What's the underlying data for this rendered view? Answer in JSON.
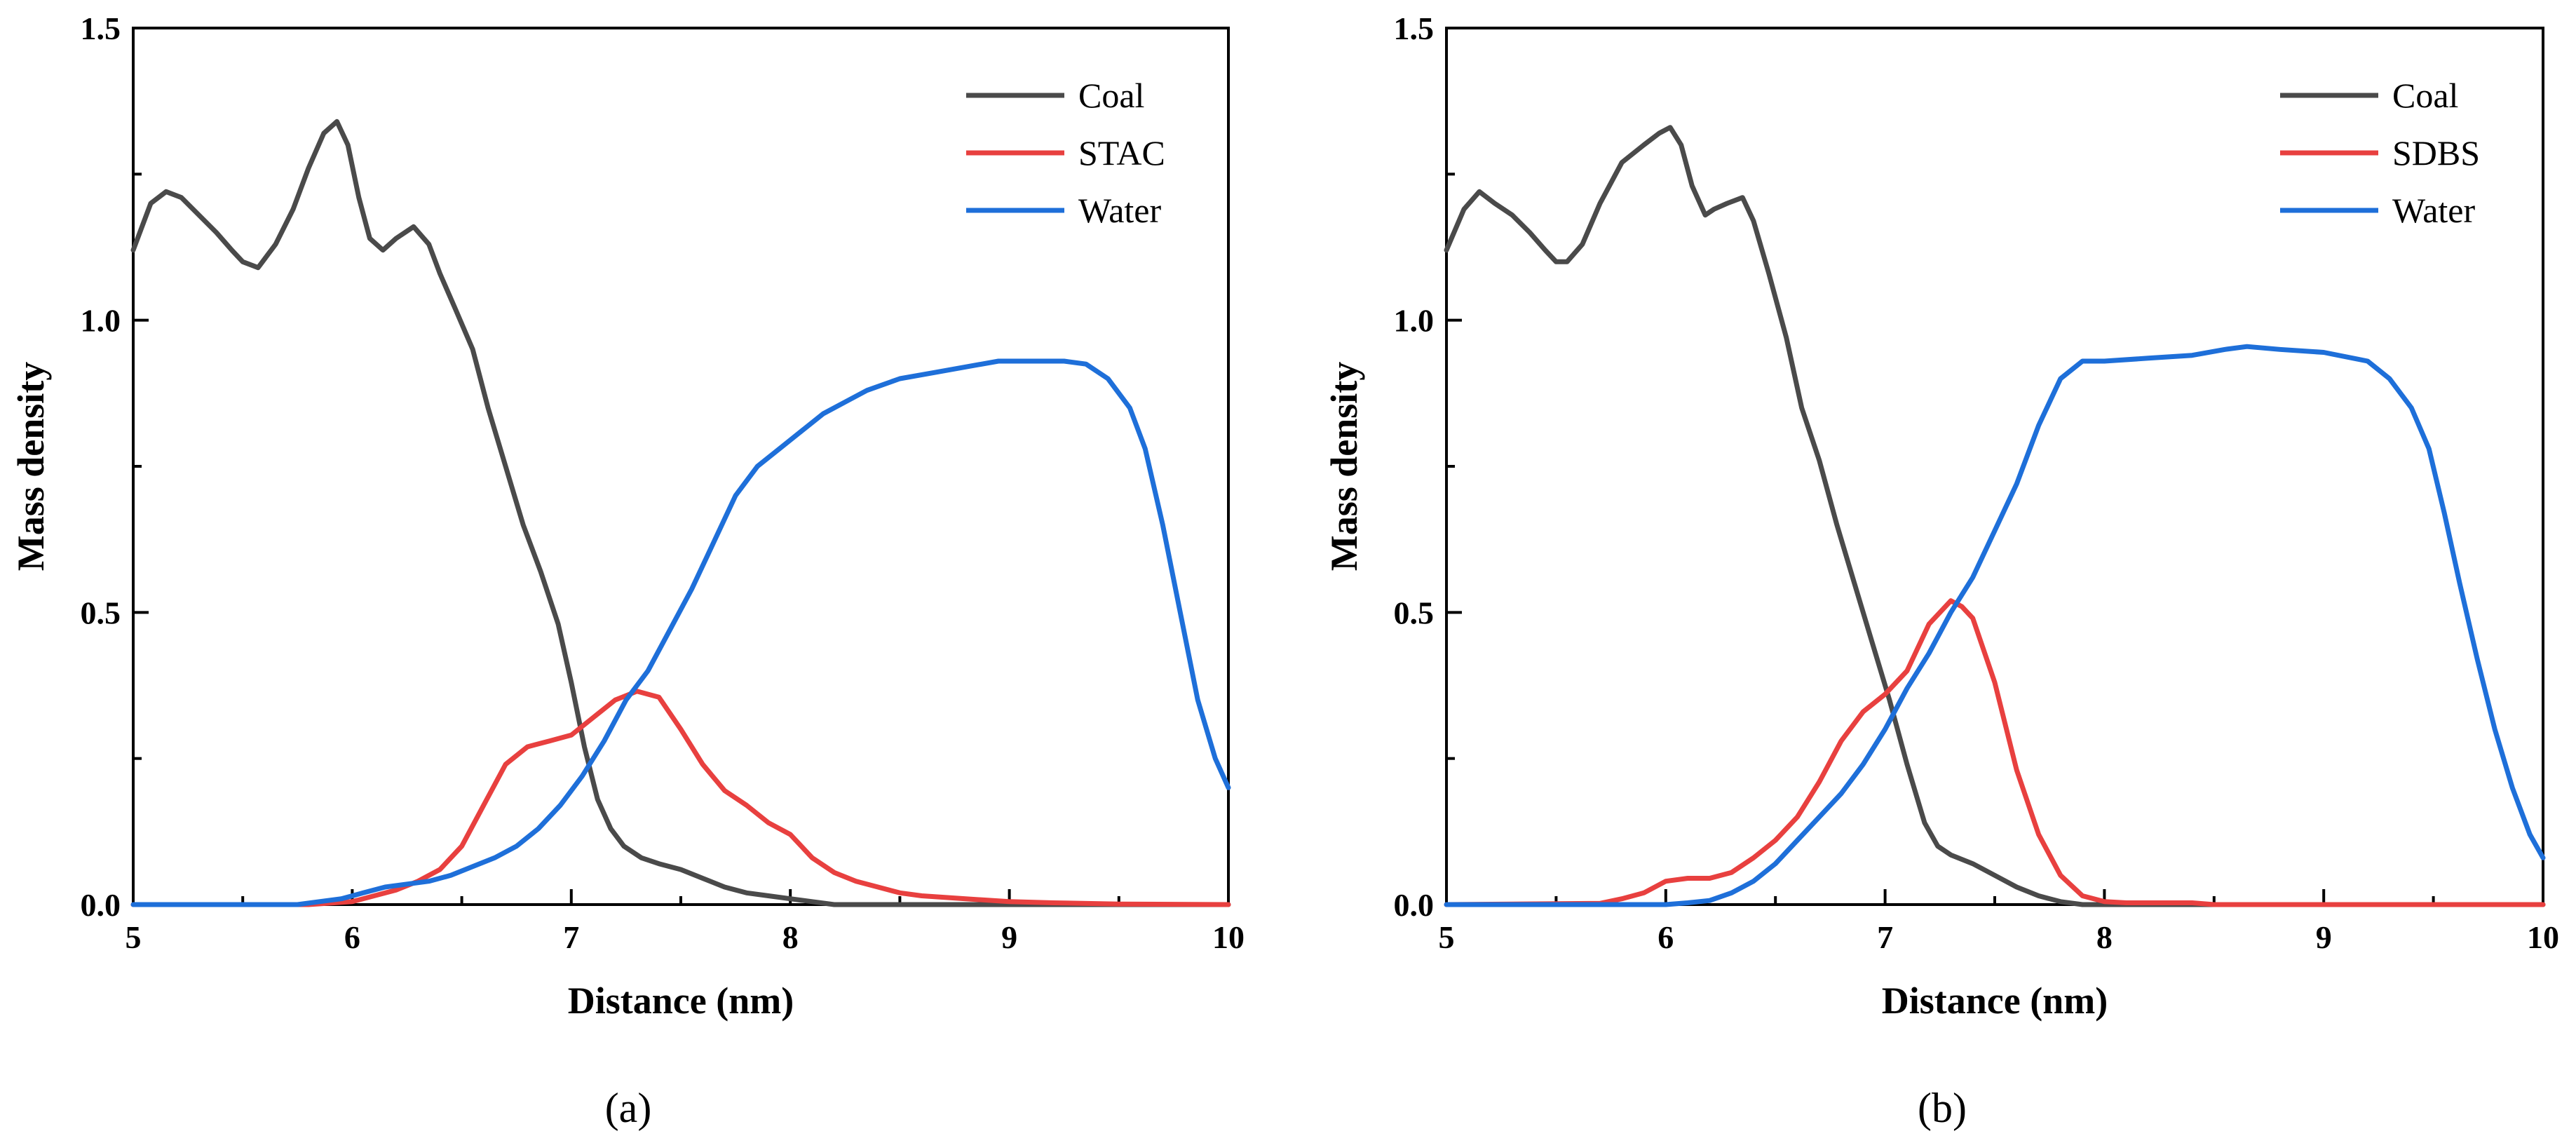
{
  "chart_data": [
    {
      "type": "line",
      "panel_label": "(a)",
      "xlabel": "Distance (nm)",
      "ylabel": "Mass density",
      "xlim": [
        5,
        10
      ],
      "ylim": [
        0,
        1.5
      ],
      "xticks": [
        5,
        6,
        7,
        8,
        9,
        10
      ],
      "xtick_labels": [
        "5",
        "6",
        "7",
        "8",
        "9",
        "10"
      ],
      "yticks": [
        0,
        0.5,
        1.0,
        1.5
      ],
      "ytick_labels": [
        "0.0",
        "0.5",
        "1.0",
        "1.5"
      ],
      "legend_position": "top-right",
      "series": [
        {
          "name": "Coal",
          "color": "#4a4a4a",
          "x": [
            5.0,
            5.08,
            5.15,
            5.22,
            5.3,
            5.38,
            5.45,
            5.5,
            5.57,
            5.65,
            5.73,
            5.8,
            5.87,
            5.93,
            5.98,
            6.03,
            6.08,
            6.14,
            6.2,
            6.28,
            6.35,
            6.4,
            6.47,
            6.55,
            6.62,
            6.7,
            6.78,
            6.86,
            6.94,
            7.0,
            7.06,
            7.12,
            7.18,
            7.24,
            7.32,
            7.4,
            7.5,
            7.6,
            7.7,
            7.8,
            7.9,
            8.0,
            8.1,
            8.2,
            8.5,
            9.0,
            9.5,
            10.0
          ],
          "values": [
            1.12,
            1.2,
            1.22,
            1.21,
            1.18,
            1.15,
            1.12,
            1.1,
            1.09,
            1.13,
            1.19,
            1.26,
            1.32,
            1.34,
            1.3,
            1.21,
            1.14,
            1.12,
            1.14,
            1.16,
            1.13,
            1.08,
            1.02,
            0.95,
            0.85,
            0.75,
            0.65,
            0.57,
            0.48,
            0.38,
            0.27,
            0.18,
            0.13,
            0.1,
            0.08,
            0.07,
            0.06,
            0.045,
            0.03,
            0.02,
            0.015,
            0.01,
            0.005,
            0.0,
            0.0,
            0.0,
            0.0,
            0.0
          ]
        },
        {
          "name": "STAC",
          "color": "#e8403f",
          "x": [
            5.0,
            5.8,
            6.0,
            6.1,
            6.2,
            6.3,
            6.4,
            6.5,
            6.6,
            6.7,
            6.8,
            6.9,
            7.0,
            7.1,
            7.2,
            7.3,
            7.4,
            7.5,
            7.6,
            7.7,
            7.8,
            7.9,
            8.0,
            8.1,
            8.2,
            8.3,
            8.4,
            8.5,
            8.6,
            8.8,
            9.0,
            9.2,
            9.5,
            10.0
          ],
          "values": [
            0.0,
            0.0,
            0.005,
            0.015,
            0.025,
            0.04,
            0.06,
            0.1,
            0.17,
            0.24,
            0.27,
            0.28,
            0.29,
            0.32,
            0.35,
            0.365,
            0.355,
            0.3,
            0.24,
            0.195,
            0.17,
            0.14,
            0.12,
            0.08,
            0.055,
            0.04,
            0.03,
            0.02,
            0.015,
            0.01,
            0.005,
            0.003,
            0.001,
            0.0
          ]
        },
        {
          "name": "Water",
          "color": "#1e6fd9",
          "x": [
            5.0,
            5.75,
            5.85,
            5.95,
            6.05,
            6.15,
            6.25,
            6.35,
            6.45,
            6.55,
            6.65,
            6.75,
            6.85,
            6.95,
            7.05,
            7.15,
            7.25,
            7.35,
            7.45,
            7.55,
            7.65,
            7.75,
            7.85,
            7.95,
            8.05,
            8.15,
            8.25,
            8.35,
            8.5,
            8.65,
            8.8,
            8.95,
            9.1,
            9.25,
            9.35,
            9.45,
            9.55,
            9.62,
            9.7,
            9.78,
            9.86,
            9.94,
            10.0
          ],
          "values": [
            0.0,
            0.0,
            0.005,
            0.01,
            0.02,
            0.03,
            0.035,
            0.04,
            0.05,
            0.065,
            0.08,
            0.1,
            0.13,
            0.17,
            0.22,
            0.28,
            0.35,
            0.4,
            0.47,
            0.54,
            0.62,
            0.7,
            0.75,
            0.78,
            0.81,
            0.84,
            0.86,
            0.88,
            0.9,
            0.91,
            0.92,
            0.93,
            0.93,
            0.93,
            0.925,
            0.9,
            0.85,
            0.78,
            0.65,
            0.5,
            0.35,
            0.25,
            0.2
          ]
        }
      ]
    },
    {
      "type": "line",
      "panel_label": "(b)",
      "xlabel": "Distance (nm)",
      "ylabel": "Mass density",
      "xlim": [
        5,
        10
      ],
      "ylim": [
        0,
        1.5
      ],
      "xticks": [
        5,
        6,
        7,
        8,
        9,
        10
      ],
      "xtick_labels": [
        "5",
        "6",
        "7",
        "8",
        "9",
        "10"
      ],
      "yticks": [
        0,
        0.5,
        1.0,
        1.5
      ],
      "ytick_labels": [
        "0.0",
        "0.5",
        "1.0",
        "1.5"
      ],
      "legend_position": "top-right",
      "series": [
        {
          "name": "Coal",
          "color": "#4a4a4a",
          "x": [
            5.0,
            5.08,
            5.15,
            5.22,
            5.3,
            5.38,
            5.45,
            5.5,
            5.55,
            5.62,
            5.7,
            5.8,
            5.9,
            5.97,
            6.02,
            6.07,
            6.12,
            6.18,
            6.22,
            6.28,
            6.35,
            6.4,
            6.47,
            6.55,
            6.62,
            6.7,
            6.78,
            6.86,
            6.94,
            7.02,
            7.1,
            7.18,
            7.24,
            7.3,
            7.4,
            7.5,
            7.6,
            7.7,
            7.8,
            7.9,
            8.0,
            9.0,
            10.0
          ],
          "values": [
            1.12,
            1.19,
            1.22,
            1.2,
            1.18,
            1.15,
            1.12,
            1.1,
            1.1,
            1.13,
            1.2,
            1.27,
            1.3,
            1.32,
            1.33,
            1.3,
            1.23,
            1.18,
            1.19,
            1.2,
            1.21,
            1.17,
            1.08,
            0.97,
            0.85,
            0.76,
            0.65,
            0.55,
            0.45,
            0.35,
            0.24,
            0.14,
            0.1,
            0.085,
            0.07,
            0.05,
            0.03,
            0.015,
            0.005,
            0.0,
            0.0,
            0.0,
            0.0
          ]
        },
        {
          "name": "SDBS",
          "color": "#e8403f",
          "x": [
            5.0,
            5.7,
            5.8,
            5.9,
            6.0,
            6.1,
            6.2,
            6.3,
            6.4,
            6.5,
            6.6,
            6.7,
            6.8,
            6.9,
            7.0,
            7.1,
            7.2,
            7.3,
            7.35,
            7.4,
            7.5,
            7.6,
            7.7,
            7.8,
            7.9,
            8.0,
            8.1,
            8.4,
            8.5,
            9.0,
            10.0
          ],
          "values": [
            0.0,
            0.002,
            0.01,
            0.02,
            0.04,
            0.045,
            0.045,
            0.055,
            0.08,
            0.11,
            0.15,
            0.21,
            0.28,
            0.33,
            0.36,
            0.4,
            0.48,
            0.52,
            0.51,
            0.49,
            0.38,
            0.23,
            0.12,
            0.05,
            0.015,
            0.005,
            0.003,
            0.003,
            0.0,
            0.0,
            0.0
          ]
        },
        {
          "name": "Water",
          "color": "#1e6fd9",
          "x": [
            5.0,
            6.0,
            6.1,
            6.2,
            6.3,
            6.4,
            6.5,
            6.6,
            6.7,
            6.8,
            6.9,
            7.0,
            7.1,
            7.2,
            7.3,
            7.4,
            7.5,
            7.6,
            7.7,
            7.8,
            7.9,
            8.0,
            8.2,
            8.4,
            8.55,
            8.65,
            8.8,
            9.0,
            9.2,
            9.3,
            9.4,
            9.48,
            9.55,
            9.62,
            9.7,
            9.78,
            9.86,
            9.94,
            10.0
          ],
          "values": [
            0.0,
            0.0,
            0.003,
            0.007,
            0.02,
            0.04,
            0.07,
            0.11,
            0.15,
            0.19,
            0.24,
            0.3,
            0.37,
            0.43,
            0.5,
            0.56,
            0.64,
            0.72,
            0.82,
            0.9,
            0.93,
            0.93,
            0.935,
            0.94,
            0.95,
            0.955,
            0.95,
            0.945,
            0.93,
            0.9,
            0.85,
            0.78,
            0.67,
            0.55,
            0.42,
            0.3,
            0.2,
            0.12,
            0.08
          ]
        }
      ]
    }
  ]
}
